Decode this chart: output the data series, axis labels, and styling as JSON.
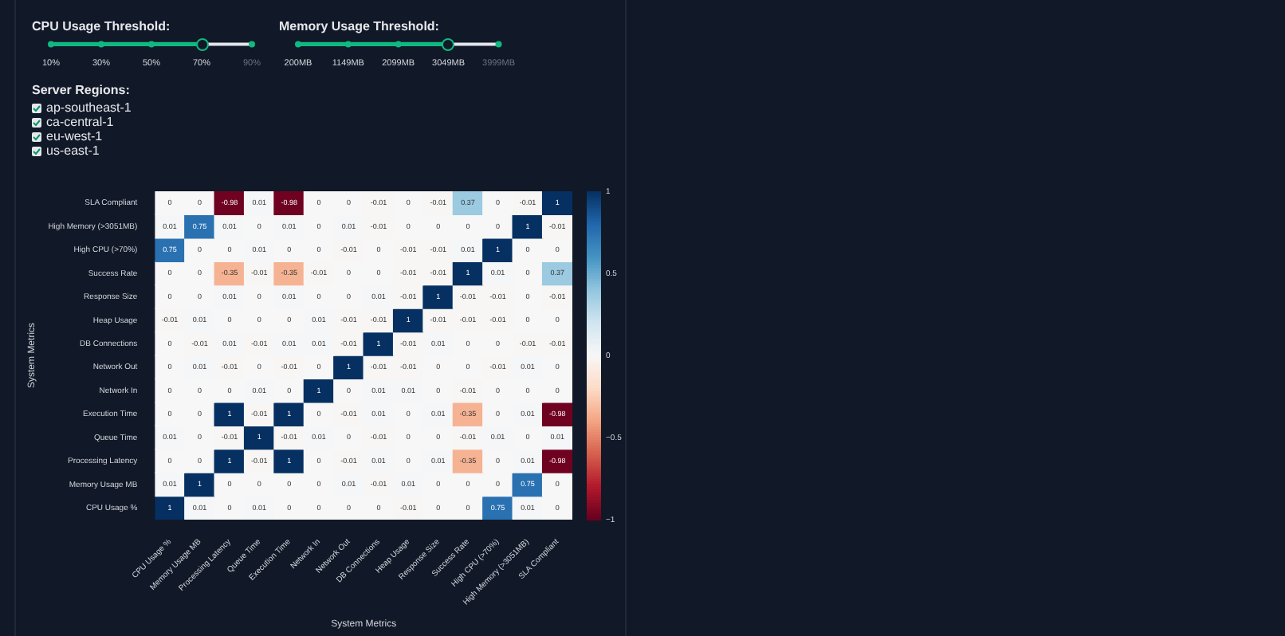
{
  "chart_data": [
    {
      "type": "bar",
      "orientation": "horizontal",
      "title": "CPU Usage Threshold:",
      "categories": [
        null
      ],
      "values": [
        70
      ],
      "color": "#10b981",
      "tick_labels": "x",
      "xlim": [
        10,
        90
      ],
      "xticks": [
        {
          "value": 10,
          "label": "10%"
        },
        {
          "value": 30,
          "label": "30%"
        },
        {
          "value": 50,
          "label": "50%"
        },
        {
          "value": 70,
          "label": "70%"
        },
        {
          "value": 90,
          "label": "90%"
        }
      ]
    },
    {
      "type": "bar",
      "orientation": "horizontal",
      "title": "Memory Usage Threshold:",
      "categories": [
        null
      ],
      "values": [
        3049
      ],
      "color": "#10b981",
      "tick_labels": "x",
      "xlim": [
        200,
        3999
      ],
      "xticks": [
        {
          "value": 200,
          "label": "200MB"
        },
        {
          "value": 1149,
          "label": "1149MB"
        },
        {
          "value": 2099,
          "label": "2099MB"
        },
        {
          "value": 3049,
          "label": "3049MB"
        },
        {
          "value": 3999,
          "label": "3999MB"
        }
      ]
    },
    {
      "type": "other",
      "title": "Server Regions:",
      "annotations": [
        "ap-southeast-1",
        "ca-central-1",
        "eu-west-1",
        "us-east-1"
      ]
    },
    {
      "type": "heatmap",
      "xlabel": "System Metrics",
      "ylabel": "System Metrics",
      "categories": [
        "CPU Usage %",
        "Memory Usage MB",
        "Processing Latency",
        "Queue Time",
        "Execution Time",
        "Network In",
        "Network Out",
        "DB Connections",
        "Heap Usage",
        "Response Size",
        "Success Rate",
        "High CPU (>70%)",
        "High Memory (>3051MB)",
        "SLA Compliant"
      ],
      "y_categories": [
        "SLA Compliant",
        "High Memory (>3051MB)",
        "High CPU (>70%)",
        "Success Rate",
        "Response Size",
        "Heap Usage",
        "DB Connections",
        "Network Out",
        "Network In",
        "Execution Time",
        "Queue Time",
        "Processing Latency",
        "Memory Usage MB",
        "CPU Usage %"
      ],
      "cells": [
        [
          0,
          0,
          -0.98,
          0.01,
          -0.98,
          0,
          0,
          -0.01,
          0,
          -0.01,
          0.37,
          0,
          -0.01,
          1
        ],
        [
          0.01,
          0.75,
          0.01,
          0,
          0.01,
          0,
          0.01,
          -0.01,
          0,
          0,
          0,
          0,
          1,
          -0.01
        ],
        [
          0.75,
          0,
          0,
          0.01,
          0,
          0,
          -0.01,
          0,
          -0.01,
          -0.01,
          0.01,
          1,
          0,
          0
        ],
        [
          0,
          0,
          -0.35,
          -0.01,
          -0.35,
          -0.01,
          0,
          0,
          -0.01,
          -0.01,
          1,
          0.01,
          0,
          0.37
        ],
        [
          0,
          0,
          0.01,
          0,
          0.01,
          0,
          0,
          0.01,
          -0.01,
          1,
          -0.01,
          -0.01,
          0,
          -0.01
        ],
        [
          -0.01,
          0.01,
          0,
          0,
          0,
          0.01,
          -0.01,
          -0.01,
          1,
          -0.01,
          -0.01,
          -0.01,
          0,
          0
        ],
        [
          0,
          -0.01,
          0.01,
          -0.01,
          0.01,
          0.01,
          -0.01,
          1,
          -0.01,
          0.01,
          0,
          0,
          -0.01,
          -0.01
        ],
        [
          0,
          0.01,
          -0.01,
          0,
          -0.01,
          0,
          1,
          -0.01,
          -0.01,
          0,
          0,
          -0.01,
          0.01,
          0
        ],
        [
          0,
          0,
          0,
          0.01,
          0,
          1,
          0,
          0.01,
          0.01,
          0,
          -0.01,
          0,
          0,
          0
        ],
        [
          0,
          0,
          1,
          -0.01,
          1,
          0,
          -0.01,
          0.01,
          0,
          0.01,
          -0.35,
          0,
          0.01,
          -0.98
        ],
        [
          0.01,
          0,
          -0.01,
          1,
          -0.01,
          0.01,
          0,
          -0.01,
          0,
          0,
          -0.01,
          0.01,
          0,
          0.01
        ],
        [
          0,
          0,
          1,
          -0.01,
          1,
          0,
          -0.01,
          0.01,
          0,
          0.01,
          -0.35,
          0,
          0.01,
          -0.98
        ],
        [
          0.01,
          1,
          0,
          0,
          0,
          0,
          0.01,
          -0.01,
          0.01,
          0,
          0,
          0,
          0.75,
          0
        ],
        [
          1,
          0.01,
          0,
          0.01,
          0,
          0,
          0,
          0,
          -0.01,
          0,
          0,
          0.75,
          0.01,
          0
        ]
      ],
      "clim": [
        -1,
        1
      ],
      "cticks": [
        {
          "value": -1,
          "label": "−1"
        },
        {
          "value": -0.5,
          "label": "−0.5"
        },
        0,
        0.5,
        1
      ],
      "data_labels": true
    }
  ]
}
